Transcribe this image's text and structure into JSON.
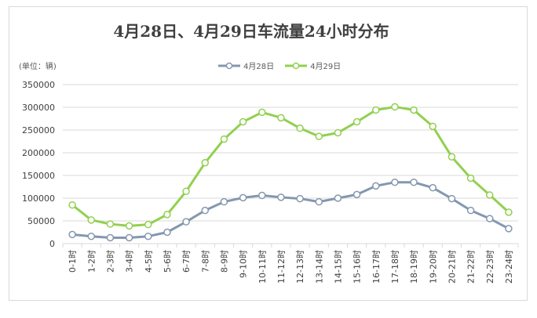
{
  "chart_data": {
    "type": "line",
    "title": "4月28日、4月29日车流量24小时分布",
    "unit_label": "(单位：辆)",
    "xlabel": "",
    "ylabel": "",
    "ylim": [
      0,
      350000
    ],
    "yticks": [
      0,
      50000,
      100000,
      150000,
      200000,
      250000,
      300000,
      350000
    ],
    "ytick_labels": [
      "0",
      "50000",
      "100000",
      "150000",
      "200000",
      "250000",
      "300000",
      "350000"
    ],
    "grid": true,
    "legend_position": "top-center",
    "categories": [
      "0-1时",
      "1-2时",
      "2-3时",
      "3-4时",
      "4-5时",
      "5-6时",
      "6-7时",
      "7-8时",
      "8-9时",
      "9-10时",
      "10-11时",
      "11-12时",
      "12-13时",
      "13-14时",
      "14-15时",
      "15-16时",
      "16-17时",
      "17-18时",
      "18-19时",
      "19-20时",
      "20-21时",
      "21-22时",
      "22-23时",
      "23-24时"
    ],
    "series": [
      {
        "name": "4月28日",
        "color": "#8497b0",
        "values": [
          20000,
          16000,
          13000,
          13000,
          16000,
          25000,
          48000,
          73000,
          92000,
          101000,
          106000,
          102000,
          99000,
          92000,
          100000,
          108000,
          127000,
          135000,
          135000,
          123000,
          99000,
          73000,
          55000,
          33000
        ]
      },
      {
        "name": "4月29日",
        "color": "#92d050",
        "values": [
          85000,
          52000,
          43000,
          39000,
          42000,
          64000,
          115000,
          178000,
          230000,
          268000,
          289000,
          277000,
          254000,
          236000,
          244000,
          268000,
          294000,
          301000,
          294000,
          258000,
          191000,
          144000,
          107000,
          69000
        ]
      }
    ]
  }
}
